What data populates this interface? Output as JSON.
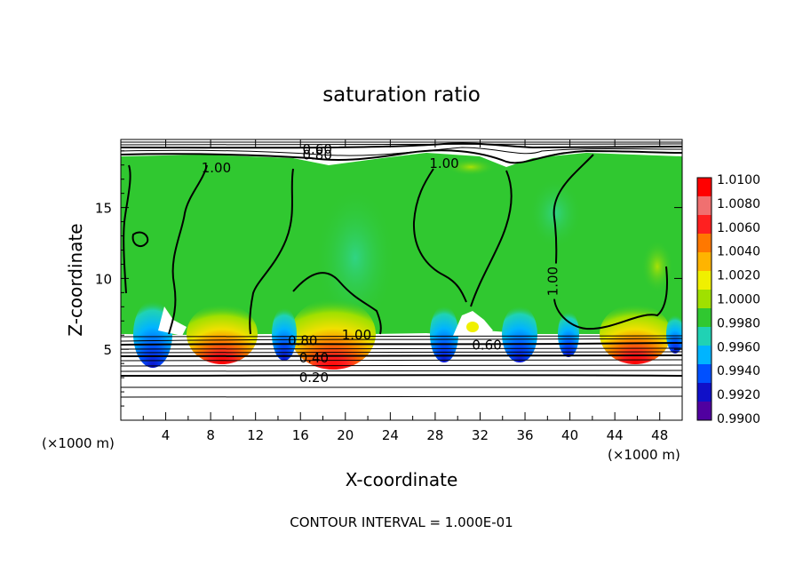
{
  "chart_data": {
    "type": "heatmap",
    "title": "saturation ratio",
    "xlabel": "X-coordinate",
    "ylabel": "Z-coordinate",
    "x_unit": "(×1000 m)",
    "xlim": [
      0,
      50
    ],
    "ylim": [
      0,
      19.8
    ],
    "x_ticks": [
      4,
      8,
      12,
      16,
      20,
      24,
      28,
      32,
      36,
      40,
      44,
      48
    ],
    "y_ticks": [
      5,
      10,
      15
    ],
    "footer": "CONTOUR INTERVAL = 1.000E-01",
    "colorbar": {
      "range": [
        0.99,
        1.01
      ],
      "labels": [
        "1.0100",
        "1.0080",
        "1.0060",
        "1.0040",
        "1.0020",
        "1.0000",
        "0.9980",
        "0.9960",
        "0.9940",
        "0.9920",
        "0.9900"
      ],
      "colors": [
        "#ff0000",
        "#f07070",
        "#ff2020",
        "#ff7800",
        "#ffb400",
        "#f0f000",
        "#a0e000",
        "#30c830",
        "#20d2b4",
        "#00b4ff",
        "#0050ff",
        "#1010c8",
        "#5000a0"
      ]
    },
    "contour_labels": [
      {
        "text": "0.60",
        "x": 17.5,
        "z": 19.1
      },
      {
        "text": "0.80",
        "x": 17.5,
        "z": 18.7
      },
      {
        "text": "1.00",
        "x": 8.5,
        "z": 17.8
      },
      {
        "text": "1.00",
        "x": 28.8,
        "z": 18.1
      },
      {
        "text": "1.00",
        "x": 38.5,
        "z": 9.8
      },
      {
        "text": "1.00",
        "x": 21.0,
        "z": 6.0
      },
      {
        "text": "0.80",
        "x": 16.2,
        "z": 5.6
      },
      {
        "text": "0.60",
        "x": 32.6,
        "z": 5.3
      },
      {
        "text": "0.40",
        "x": 17.2,
        "z": 4.4
      },
      {
        "text": "0.20",
        "x": 17.2,
        "z": 3.0
      }
    ]
  }
}
